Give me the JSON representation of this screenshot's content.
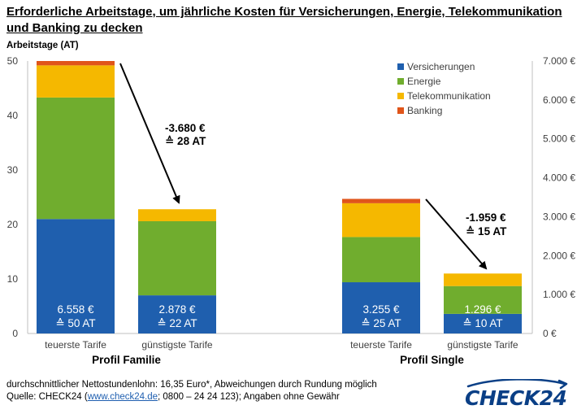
{
  "title": "Erforderliche Arbeitstage, um jährliche Kosten für Versicherungen, Energie, Telekommunikation und Banking zu decken",
  "footnote": {
    "line1": "durchschnittlicher Nettostundenlohn: 16,35 Euro*, Abweichungen durch Rundung möglich",
    "line2_prefix": "Quelle: CHECK24 (",
    "line2_link": "www.check24.de",
    "line2_suffix": "; 0800 – 24 24 123); Angaben ohne Gewähr"
  },
  "logo": {
    "text": "CHECK24"
  },
  "colors": {
    "versicherungen": "#1f5fae",
    "energie": "#70ad2e",
    "telekommunikation": "#f5b800",
    "banking": "#e0551a"
  },
  "chart_data": {
    "type": "bar",
    "stacked": true,
    "ylabel": "Arbeitstage (AT)",
    "ylim": [
      0,
      50
    ],
    "yticks": [
      "0",
      "10",
      "20",
      "30",
      "40",
      "50"
    ],
    "y2lim": [
      0,
      7000
    ],
    "y2ticks": [
      "0 €",
      "1.000 €",
      "2.000 €",
      "3.000 €",
      "4.000 €",
      "5.000 €",
      "6.000 €",
      "7.000 €"
    ],
    "categories": [
      "teuerste Tarife",
      "günstigste Tarife",
      "teuerste Tarife",
      "günstigste Tarife"
    ],
    "groups": [
      "Profil Familie",
      "Profil Single"
    ],
    "series": [
      {
        "name": "Versicherungen",
        "values": [
          21.0,
          7.0,
          9.4,
          3.6
        ]
      },
      {
        "name": "Energie",
        "values": [
          22.3,
          13.6,
          8.3,
          5.1
        ]
      },
      {
        "name": "Telekommunikation",
        "values": [
          5.9,
          2.2,
          6.2,
          2.3
        ]
      },
      {
        "name": "Banking",
        "values": [
          0.8,
          0.0,
          0.8,
          0.0
        ]
      }
    ],
    "bar_labels": [
      {
        "amount": "6.558 €",
        "days": "≙ 50 AT"
      },
      {
        "amount": "2.878 €",
        "days": "≙ 22 AT"
      },
      {
        "amount": "3.255 €",
        "days": "≙ 25 AT"
      },
      {
        "amount": "1.296 €",
        "days": "≙ 10 AT"
      }
    ],
    "annotations": [
      {
        "amount": "-3.680 €",
        "days": "≙ 28 AT"
      },
      {
        "amount": "-1.959 €",
        "days": "≙ 15 AT"
      }
    ],
    "legend_position": "top-right",
    "grid": false
  }
}
